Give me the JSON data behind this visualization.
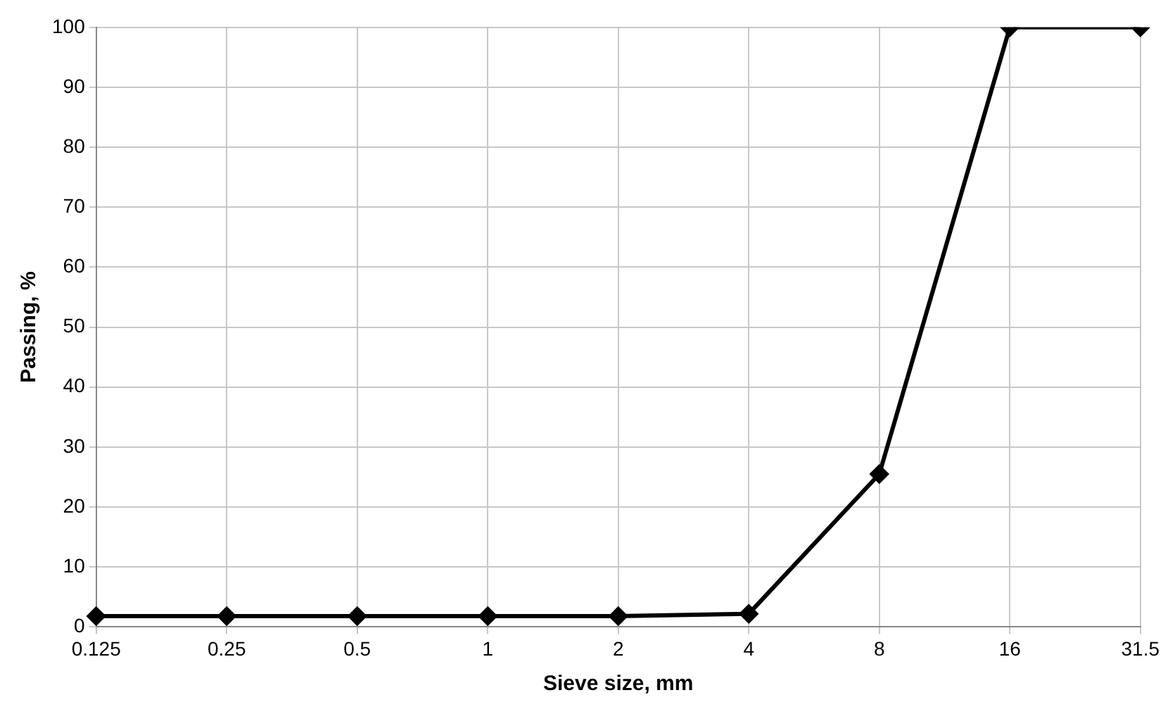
{
  "chart_data": {
    "type": "line",
    "xlabel": "Sieve size, mm",
    "ylabel": "Passing, %",
    "categories": [
      "0.125",
      "0.25",
      "0.5",
      "1",
      "2",
      "4",
      "8",
      "16",
      "31.5"
    ],
    "series": [
      {
        "color": "#000000",
        "values": [
          1.8,
          1.8,
          1.8,
          1.8,
          1.8,
          2.2,
          25.5,
          100,
          100
        ]
      }
    ],
    "ylim": [
      0,
      100
    ],
    "yticks": [
      0,
      10,
      20,
      30,
      40,
      50,
      60,
      70,
      80,
      90,
      100
    ],
    "grid": true,
    "legend": false,
    "marker": "diamond",
    "line_style": "solid"
  }
}
